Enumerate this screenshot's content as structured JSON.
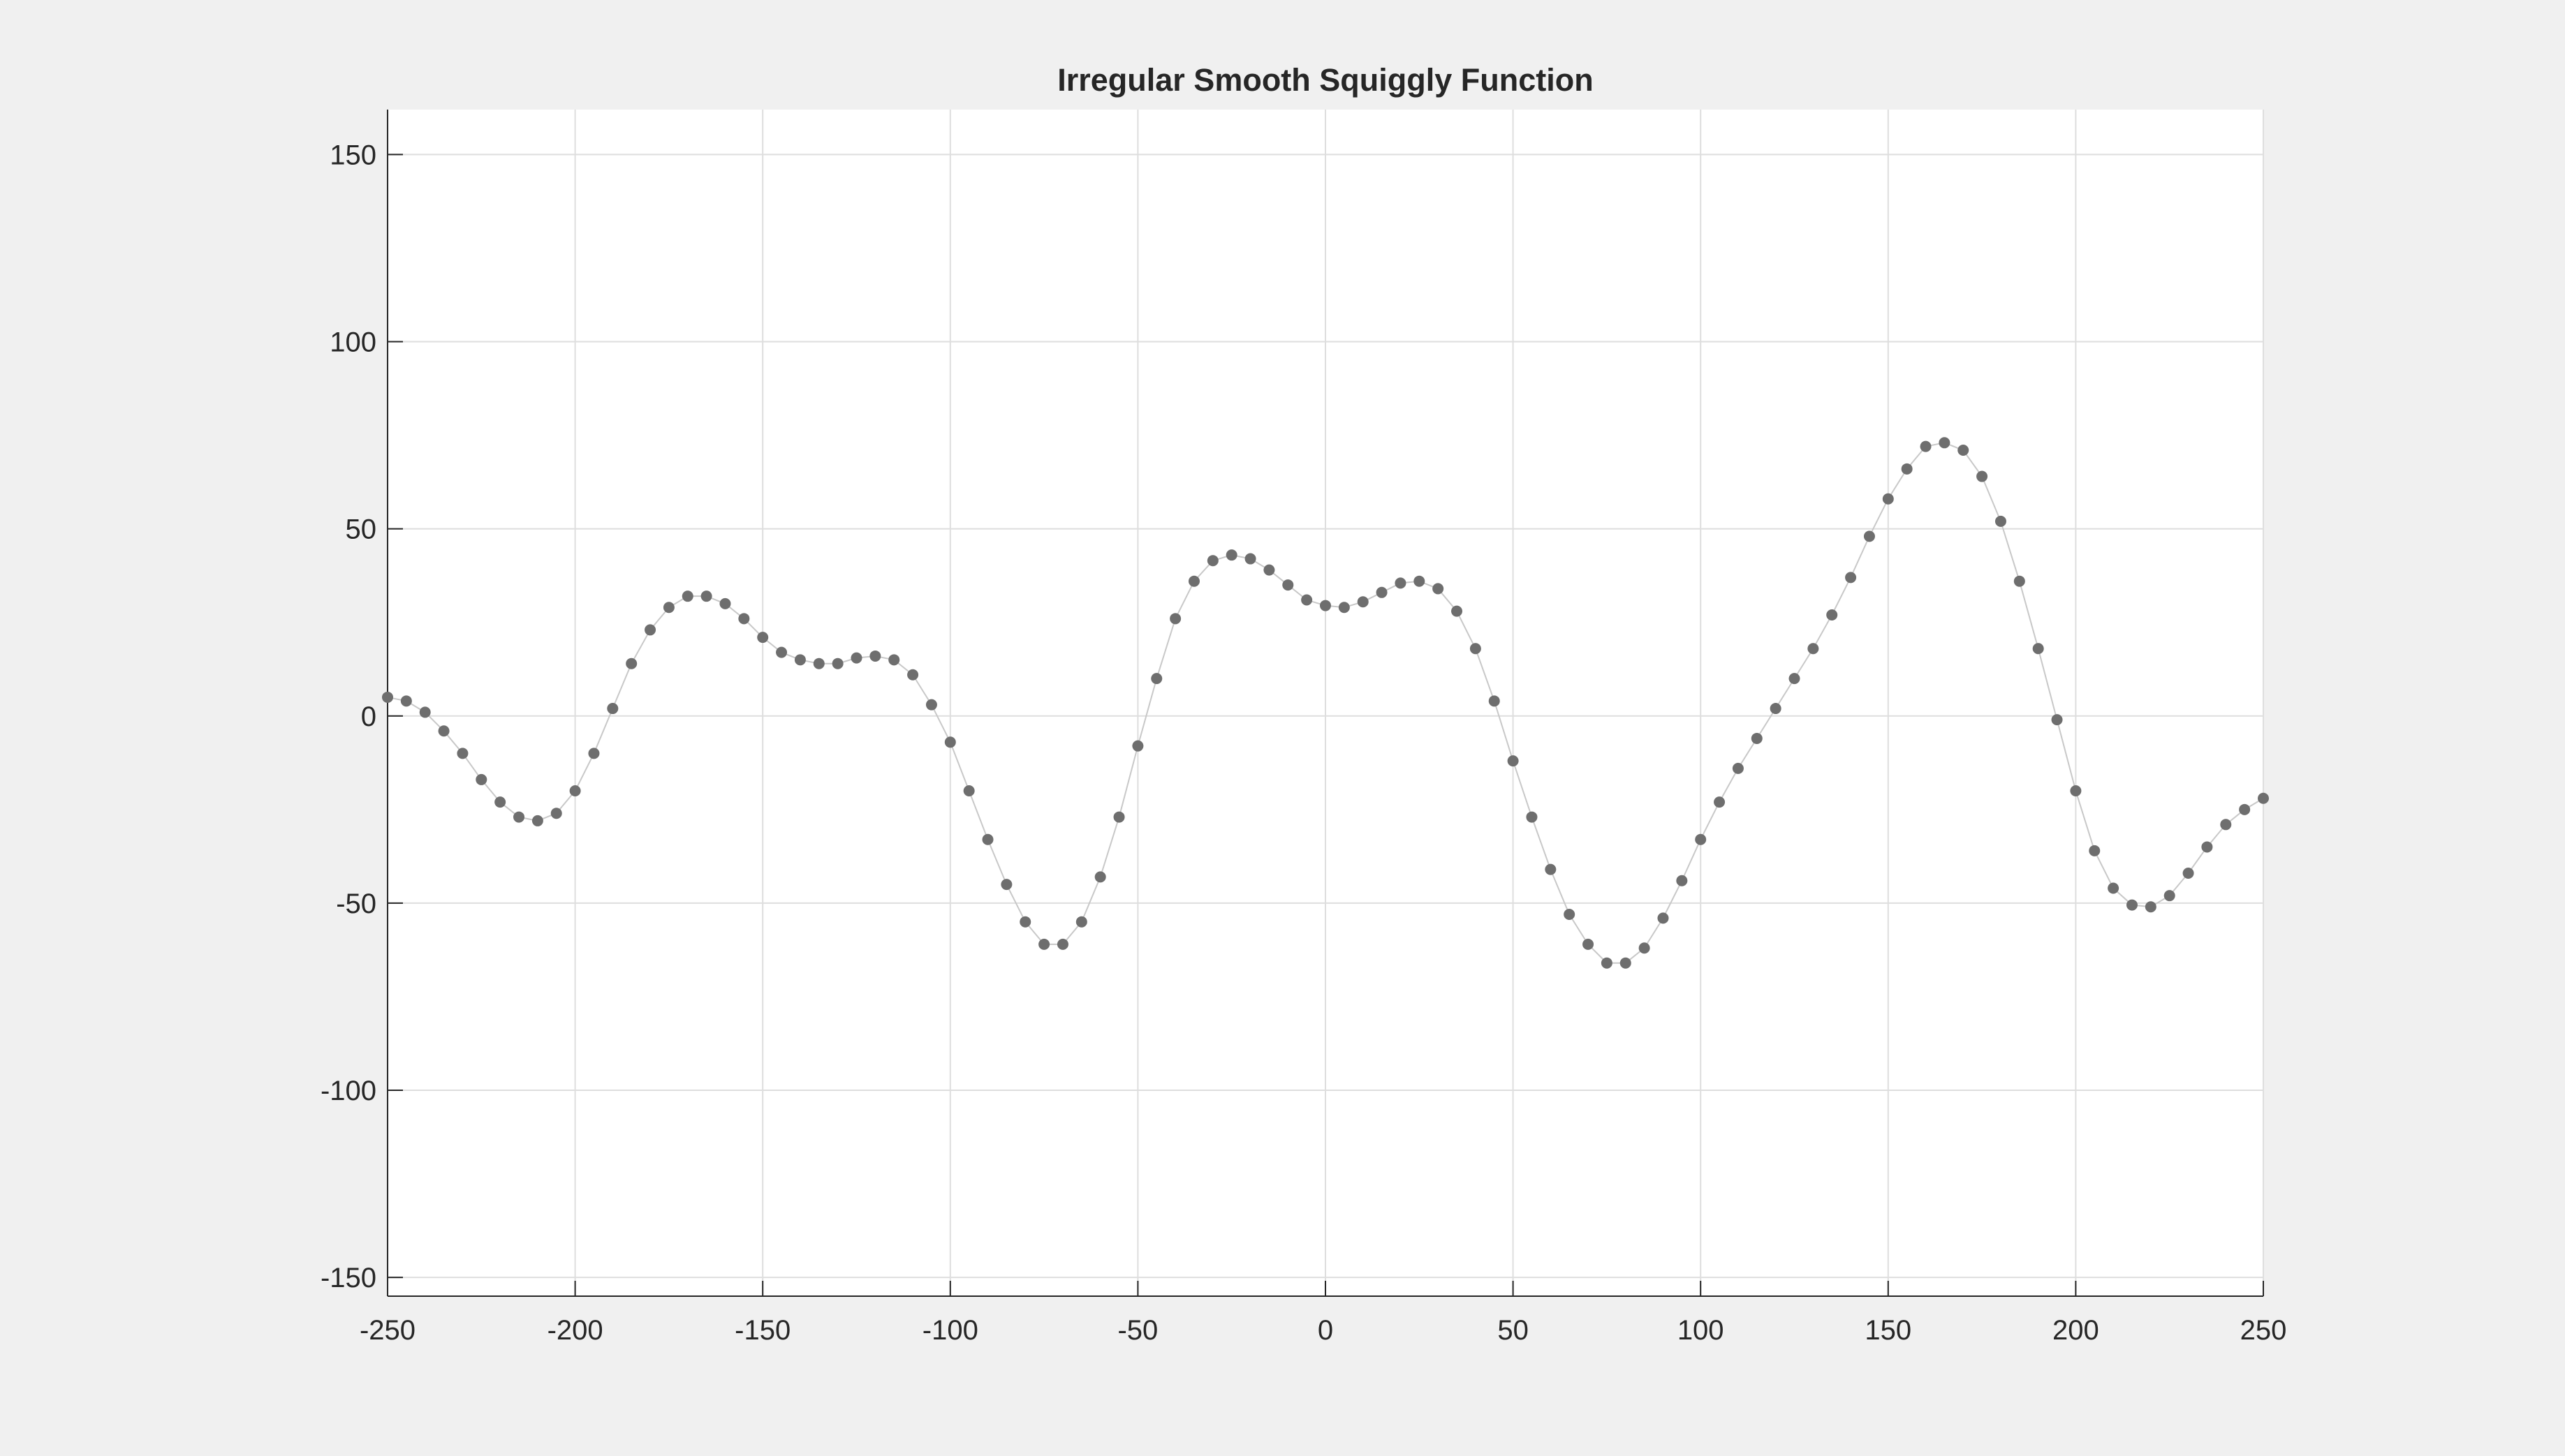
{
  "chart_data": {
    "type": "line",
    "title": "Irregular Smooth Squiggly Function",
    "x": [
      -250,
      -245,
      -240,
      -235,
      -230,
      -225,
      -220,
      -215,
      -210,
      -205,
      -200,
      -195,
      -190,
      -185,
      -180,
      -175,
      -170,
      -165,
      -160,
      -155,
      -150,
      -145,
      -140,
      -135,
      -130,
      -125,
      -120,
      -115,
      -110,
      -105,
      -100,
      -95,
      -90,
      -85,
      -80,
      -75,
      -70,
      -65,
      -60,
      -55,
      -50,
      -45,
      -40,
      -35,
      -30,
      -25,
      -20,
      -15,
      -10,
      -5,
      0,
      5,
      10,
      15,
      20,
      25,
      30,
      35,
      40,
      45,
      50,
      55,
      60,
      65,
      70,
      75,
      80,
      85,
      90,
      95,
      100,
      105,
      110,
      115,
      120,
      125,
      130,
      135,
      140,
      145,
      150,
      155,
      160,
      165,
      170,
      175,
      180,
      185,
      190,
      195,
      200,
      205,
      210,
      215,
      220,
      225,
      230,
      235,
      240,
      245,
      250
    ],
    "series": [
      {
        "color": "#6e6e6e",
        "values": [
          5,
          4,
          1,
          -4,
          -10,
          -17,
          -23,
          -27,
          -28,
          -26,
          -20,
          -10,
          2,
          14,
          23,
          29,
          32,
          32,
          30,
          26,
          21,
          17,
          15,
          14,
          14,
          15.5,
          16,
          15,
          11,
          3,
          -7,
          -20,
          -33,
          -45,
          -55,
          -61,
          -61,
          -55,
          -43,
          -27,
          -8,
          10,
          26,
          36,
          41.5,
          43,
          42,
          39,
          35,
          31,
          29.5,
          29,
          30.5,
          33,
          35.5,
          36,
          34,
          28,
          18,
          4,
          -12,
          -27,
          -41,
          -53,
          -61,
          -66,
          -66,
          -62,
          -54,
          -44,
          -33,
          -23,
          -14,
          -6,
          2,
          10,
          18,
          27,
          37,
          48,
          58,
          66,
          72,
          73,
          71,
          64,
          52,
          36,
          18,
          -1,
          -20,
          -36,
          -46,
          -50.5,
          -51,
          -48,
          -42,
          -35,
          -29,
          -25,
          -22
        ]
      }
    ],
    "xlim": [
      -250,
      250
    ],
    "ylim": [
      -155,
      162
    ],
    "xticks": [
      -250,
      -200,
      -150,
      -100,
      -50,
      0,
      50,
      100,
      150,
      200,
      250
    ],
    "yticks": [
      -150,
      -100,
      -50,
      0,
      50,
      100,
      150
    ],
    "grid": true
  }
}
